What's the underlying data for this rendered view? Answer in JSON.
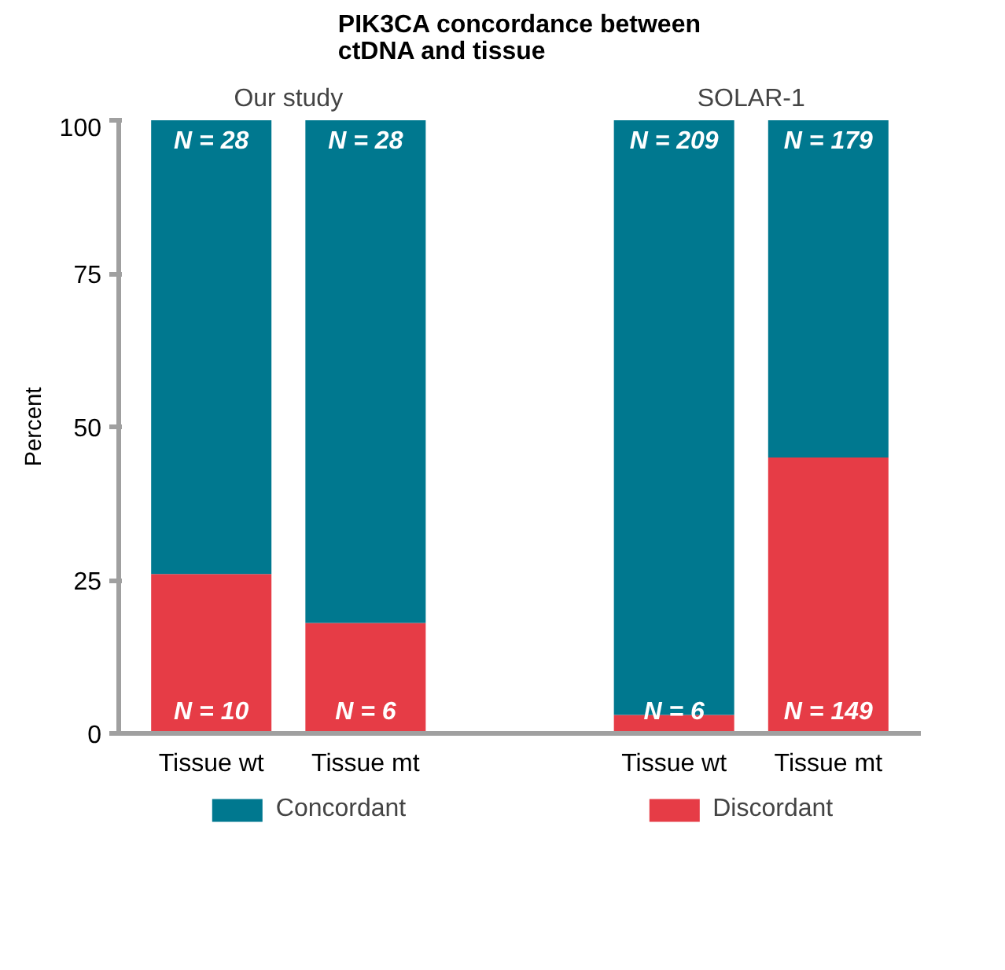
{
  "chart_data": {
    "type": "bar",
    "stacked": true,
    "title": "PIK3CA concordance between\nctDNA and tissue",
    "ylabel": "Percent",
    "categories": [
      "Tissue wt",
      "Tissue mt",
      null,
      "Tissue wt",
      "Tissue mt"
    ],
    "series": [
      {
        "name": "Discordant",
        "color": "#e63c46",
        "values": [
          26,
          18,
          null,
          3,
          45
        ]
      },
      {
        "name": "Concordant",
        "color": "#00788f",
        "values": [
          74,
          82,
          null,
          97,
          55
        ]
      }
    ],
    "annotations": [
      "Our study",
      "SOLAR-1",
      "N = 10",
      "N = 6",
      "N = 6",
      "N = 149",
      "N = 28",
      "N = 28",
      "N = 209",
      "N = 179"
    ],
    "ylim": [
      0,
      100
    ],
    "yticks": [
      0,
      25,
      50,
      75,
      100
    ],
    "grid": false,
    "legend": "bottom"
  }
}
